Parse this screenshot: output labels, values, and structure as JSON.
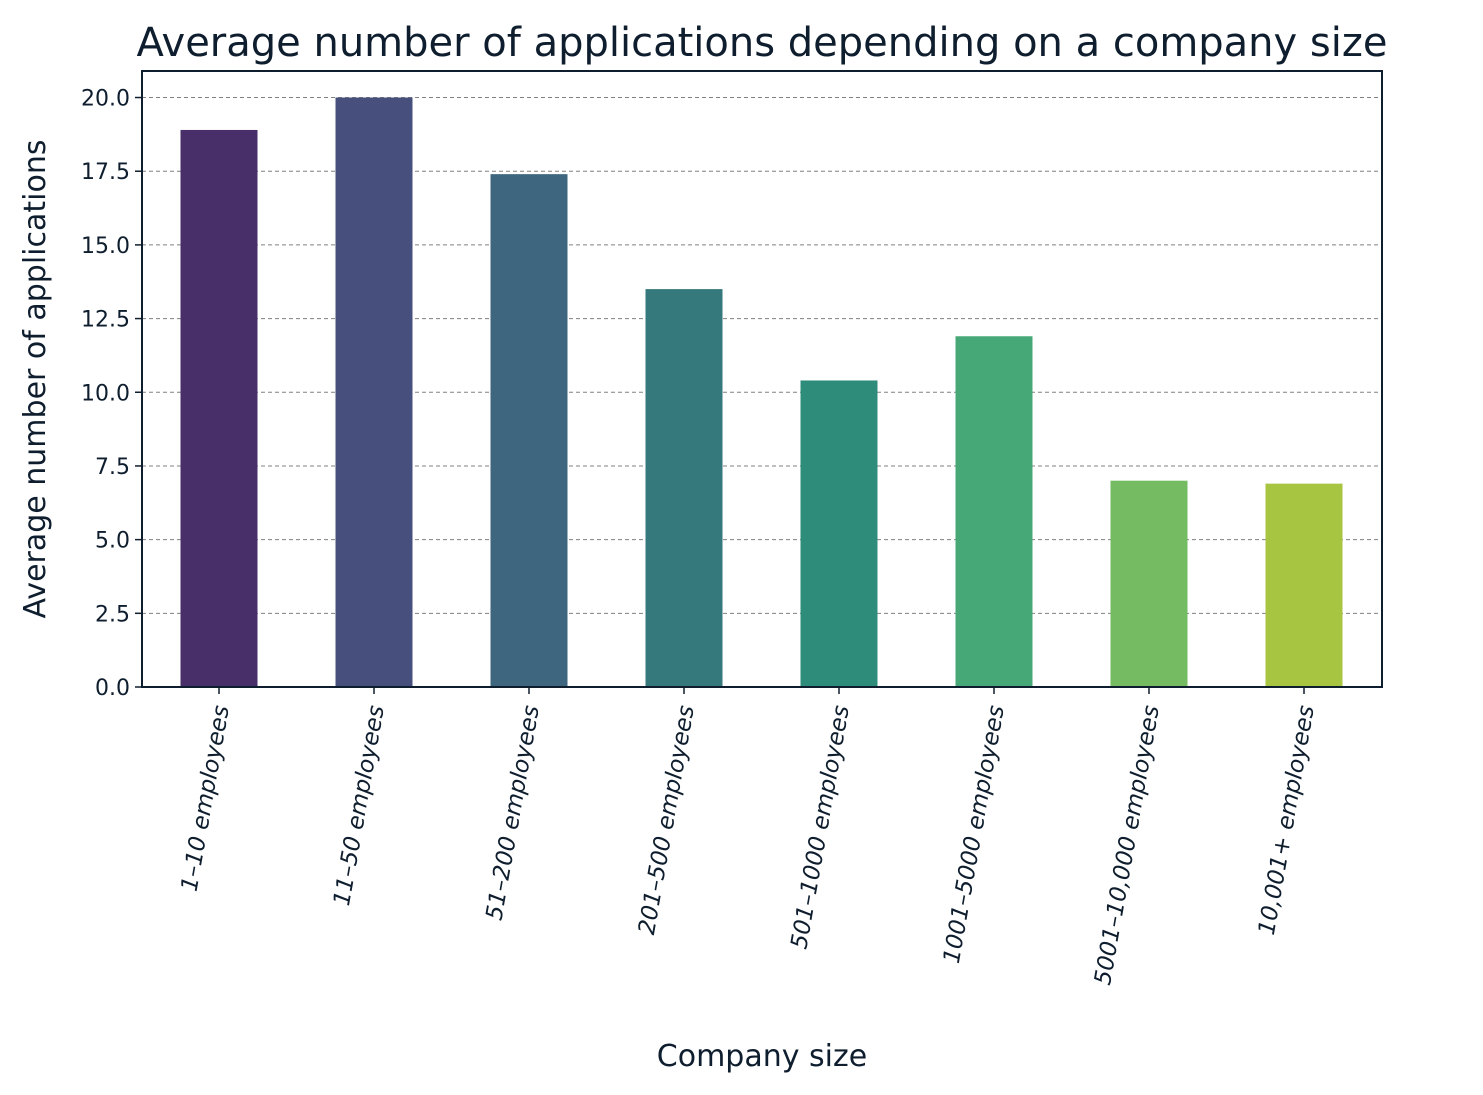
{
  "chart_data": {
    "type": "bar",
    "title": "Average number of applications depending on a company size",
    "xlabel": "Company size",
    "ylabel": "Average number of applications",
    "categories": [
      "1–10 employees",
      "11–50 employees",
      "51–200 employees",
      "201–500 employees",
      "501–1000 employees",
      "1001–5000 employees",
      "5001–10,000 employees",
      "10,001+ employees"
    ],
    "values": [
      18.9,
      20.0,
      17.4,
      13.5,
      10.4,
      11.9,
      7.0,
      6.9
    ],
    "colors": [
      "#482f6a",
      "#47507c",
      "#3e677f",
      "#35797d",
      "#2d8d7a",
      "#47a877",
      "#74bb62",
      "#a8c542"
    ],
    "ylim": [
      0,
      20.9
    ],
    "yticks": [
      "0.0",
      "2.5",
      "5.0",
      "7.5",
      "10.0",
      "12.5",
      "15.0",
      "17.5",
      "20.0"
    ],
    "grid": "horizontal dashed"
  }
}
